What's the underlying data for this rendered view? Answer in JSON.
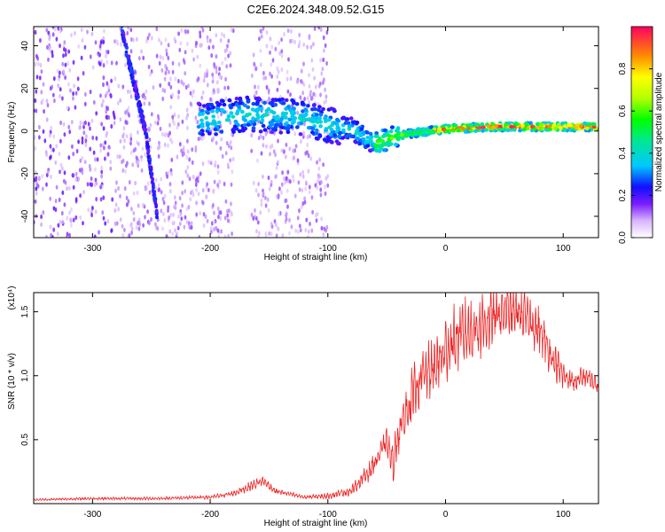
{
  "title": "C2E6.2024.348.09.52.G15",
  "chart_data": [
    {
      "type": "heatmap",
      "xlabel": "Height of straight line (km)",
      "ylabel": "Frequency (Hz)",
      "xlim": [
        -350,
        130
      ],
      "ylim": [
        -50,
        49
      ],
      "xticks": [
        -300,
        -200,
        -100,
        0,
        100
      ],
      "yticks": [
        -40,
        -20,
        0,
        20,
        40
      ],
      "colorbar": {
        "label": "Normalized spectral amplitude",
        "range": [
          0.0,
          1.0
        ],
        "ticks": [
          0.0,
          0.2,
          0.4,
          0.6,
          0.8
        ],
        "tick_labels": [
          "0.0",
          "0.2",
          "0.4",
          "0.6",
          "0.8"
        ]
      },
      "features": [
        {
          "kind": "diagonal-trace",
          "x": [
            -275,
            -265,
            -255,
            -245
          ],
          "y": [
            47,
            23,
            0,
            -40
          ],
          "peak_amplitude": 0.3
        },
        {
          "kind": "signal-band",
          "x": [
            -210,
            -170,
            -130,
            -100,
            -80,
            -60,
            -40,
            0,
            40,
            80,
            130
          ],
          "y": [
            5,
            8,
            7,
            3,
            1,
            -6,
            -2,
            1,
            2,
            2,
            2
          ],
          "peak_amplitude": 0.95
        }
      ],
      "gap_x": [
        -180,
        -165
      ]
    },
    {
      "type": "line",
      "xlabel": "Height of straight line (km)",
      "ylabel": "SNR (10 * v/v)",
      "y_scale_note": "(x10⁴)",
      "xlim": [
        -350,
        130
      ],
      "ylim": [
        0,
        1.65
      ],
      "xticks": [
        -300,
        -200,
        -100,
        0,
        100
      ],
      "yticks": [
        0.5,
        1.0,
        1.5
      ],
      "ytick_labels": [
        "0.5",
        "1.0",
        "1.5"
      ],
      "series": [
        {
          "color": "#ee2222",
          "x": [
            -350,
            -300,
            -250,
            -200,
            -180,
            -165,
            -155,
            -145,
            -120,
            -100,
            -80,
            -65,
            -55,
            -50,
            -45,
            -40,
            -30,
            -20,
            -10,
            0,
            10,
            20,
            30,
            40,
            50,
            60,
            70,
            80,
            90,
            100,
            110,
            120,
            130
          ],
          "y": [
            0.03,
            0.04,
            0.04,
            0.05,
            0.08,
            0.14,
            0.18,
            0.1,
            0.05,
            0.06,
            0.1,
            0.25,
            0.4,
            0.5,
            0.3,
            0.55,
            0.8,
            1.0,
            1.05,
            1.2,
            1.3,
            1.35,
            1.4,
            1.45,
            1.5,
            1.5,
            1.45,
            1.35,
            1.15,
            1.0,
            0.95,
            1.0,
            0.9
          ],
          "variability": [
            0.01,
            0.015,
            0.015,
            0.02,
            0.03,
            0.05,
            0.05,
            0.03,
            0.02,
            0.03,
            0.05,
            0.1,
            0.12,
            0.12,
            0.2,
            0.25,
            0.3,
            0.3,
            0.3,
            0.35,
            0.35,
            0.35,
            0.35,
            0.3,
            0.25,
            0.25,
            0.25,
            0.25,
            0.2,
            0.15,
            0.12,
            0.12,
            0.1
          ]
        }
      ]
    }
  ]
}
